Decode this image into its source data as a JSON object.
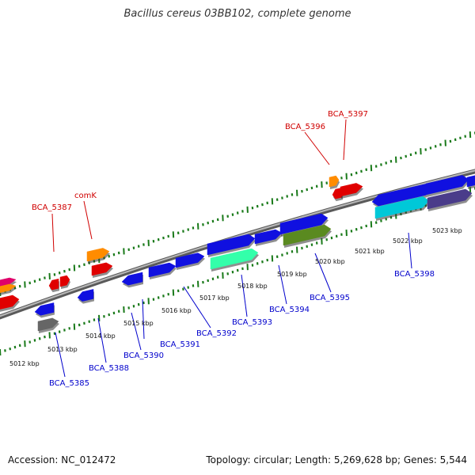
{
  "title": "Bacillus cereus 03BB102, complete genome",
  "footer": {
    "accession": "Accession: NC_012472",
    "topology": "Topology: circular; Length: 5,269,628 bp; Genes: 5,544"
  },
  "colors": {
    "backbone": "#8a8a8a",
    "tick": "#1a7a1a",
    "label_top": "#d00000",
    "label_bottom": "#0000cc"
  },
  "kbp_labels": [
    "5012 kbp",
    "5013 kbp",
    "5014 kbp",
    "5015 kbp",
    "5016 kbp",
    "5017 kbp",
    "5018 kbp",
    "5019 kbp",
    "5020 kbp",
    "5021 kbp",
    "5022 kbp",
    "5023 kbp"
  ],
  "top_labels": [
    "BCA_5387",
    "comK",
    "BCA_5396",
    "BCA_5397"
  ],
  "bottom_labels": [
    "BCA_5385",
    "BCA_5388",
    "BCA_5390",
    "BCA_5391",
    "BCA_5392",
    "BCA_5393",
    "BCA_5394",
    "BCA_5395",
    "BCA_5398"
  ]
}
